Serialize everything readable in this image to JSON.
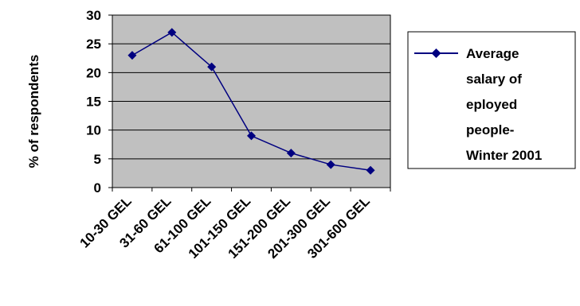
{
  "chart_data": {
    "type": "line",
    "categories": [
      "10-30 GEL",
      "31-60 GEL",
      "61-100 GEL",
      "101-150 GEL",
      "151-200 GEL",
      "201-300 GEL",
      "301-600 GEL"
    ],
    "series": [
      {
        "name": "Average salary of eployed people- Winter 2001",
        "values": [
          23,
          27,
          21,
          9,
          6,
          4,
          3
        ],
        "color": "#000080",
        "marker": "diamond"
      }
    ],
    "ylabel": "% of respondents",
    "ylim": [
      0,
      30
    ],
    "yticks": [
      0,
      5,
      10,
      15,
      20,
      25,
      30
    ],
    "grid": true,
    "plot_background": "#c0c0c0",
    "legend_position": "right",
    "legend_lines": [
      "Average",
      "salary of",
      "eployed",
      "people-",
      "Winter 2001"
    ]
  }
}
